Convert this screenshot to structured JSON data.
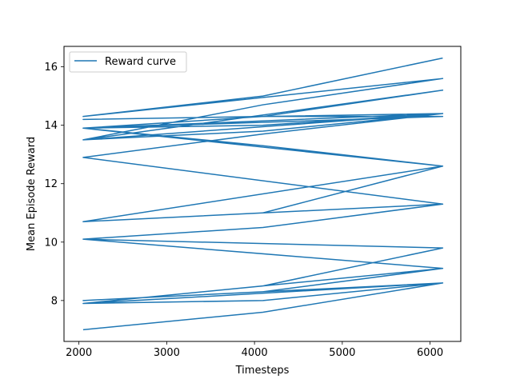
{
  "chart_data": {
    "type": "line",
    "title": "",
    "xlabel": "Timesteps",
    "ylabel": "Mean Episode Reward",
    "xlim": [
      1830,
      6350
    ],
    "ylim": [
      6.6,
      16.7
    ],
    "xticks": [
      2000,
      3000,
      4000,
      5000,
      6000
    ],
    "yticks": [
      8,
      10,
      12,
      14,
      16
    ],
    "grid": false,
    "legend": {
      "position": "upper-left"
    },
    "line_color": "#1f77b4",
    "series": [
      {
        "name": "Reward curve",
        "x": [
          2048,
          4096,
          6144,
          2048,
          4096,
          6144,
          2048,
          4096,
          6144,
          2048,
          4096,
          6144,
          2048,
          4096,
          6144,
          2048,
          4096,
          6144,
          2048,
          4096,
          6144,
          2048,
          4096,
          6144,
          2048,
          4096,
          6144,
          2048,
          4096,
          6144,
          2048,
          4096,
          6144,
          2048,
          4096,
          6144,
          2048,
          4096,
          6144,
          2048,
          4096,
          6144,
          2048,
          4096,
          6144,
          2048,
          4096,
          6144
        ],
        "y": [
          7.0,
          7.6,
          8.6,
          7.9,
          8.0,
          8.6,
          8.0,
          8.3,
          9.1,
          7.9,
          8.5,
          9.8,
          10.1,
          9.6,
          9.1,
          10.1,
          10.5,
          11.3,
          10.7,
          11.0,
          12.6,
          13.9,
          13.3,
          12.6,
          10.7,
          11.0,
          11.3,
          12.9,
          13.7,
          14.4,
          13.5,
          13.8,
          14.4,
          14.2,
          14.3,
          14.3,
          13.9,
          14.0,
          14.4,
          13.9,
          14.3,
          15.2,
          13.5,
          14.7,
          15.6,
          14.3,
          15.0,
          16.3
        ]
      }
    ]
  }
}
